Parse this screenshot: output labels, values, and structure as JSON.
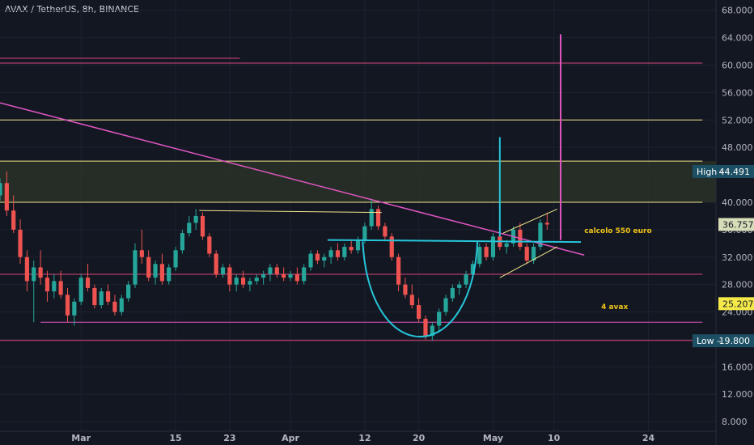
{
  "header": {
    "symbol_title": "AVAX / TetherUS, 8h, BINANCE"
  },
  "colors": {
    "background": "#131722",
    "up": "#26a69a",
    "down": "#ef5350",
    "trendline": "#e056c1",
    "resistance": "#f0e68c",
    "neckline": "#26c6da",
    "support_red": "#d9467a",
    "zone_fill": "#2c3328",
    "high_tag": "#1c4f63",
    "low_tag": "#1c4f63",
    "price_tag": "#d6ddb8",
    "avax_tag": "#f5e94a"
  },
  "chart_data": {
    "type": "candlestick",
    "title": "AVAX / TetherUS, 8h, BINANCE",
    "y_ticks": [
      "68.000",
      "64.000",
      "60.000",
      "56.000",
      "52.000",
      "48.000",
      "44.000",
      "40.000",
      "36.000",
      "32.000",
      "28.000",
      "24.000",
      "20.000",
      "16.000",
      "12.000",
      "8.000"
    ],
    "y_tick_values": [
      68,
      64,
      60,
      56,
      52,
      48,
      44,
      40,
      36,
      32,
      28,
      24,
      20,
      16,
      12,
      8
    ],
    "ylim": [
      6.6,
      69.5
    ],
    "x_ticks": [
      "Mar",
      "15",
      "23",
      "Apr",
      "12",
      "20",
      "May",
      "10",
      "24"
    ],
    "x_tick_days": [
      0,
      14,
      22,
      31,
      42,
      50,
      61,
      70,
      84
    ],
    "x_domain_days": [
      -12,
      94
    ],
    "price_tags": [
      {
        "label": "High",
        "value": "44.491",
        "price": 44.491,
        "style": "high"
      },
      {
        "label": "",
        "value": "36.757",
        "price": 36.757,
        "style": "current"
      },
      {
        "label": "",
        "value": "25.207",
        "price": 25.207,
        "style": "avax"
      },
      {
        "label": "Low",
        "value": "19.800",
        "price": 19.8,
        "style": "low"
      }
    ],
    "annotations": [
      {
        "text": "calcolo 550 euro",
        "day": 74.5,
        "price": 35.5
      },
      {
        "text": "4 avax",
        "day": 77,
        "price": 24.4
      }
    ],
    "horizontal_levels": [
      {
        "price": 60.3,
        "color": "support_red",
        "from_day": -12,
        "to_day": 92
      },
      {
        "price": 61.0,
        "color": "support_red",
        "from_day": -12,
        "to_day": 23.5
      },
      {
        "price": 52.0,
        "color": "resistance",
        "from_day": -12,
        "to_day": 92
      },
      {
        "price": 46.0,
        "color": "resistance",
        "from_day": -12,
        "to_day": 92
      },
      {
        "price": 40.0,
        "color": "resistance",
        "from_day": -12,
        "to_day": 92
      },
      {
        "price": 29.5,
        "color": "support_red",
        "from_day": -12,
        "to_day": 92
      },
      {
        "price": 22.5,
        "color": "trendline",
        "from_day": -6,
        "to_day": 92
      },
      {
        "price": 19.85,
        "color": "support_red",
        "from_day": -12,
        "to_day": 92
      }
    ],
    "resistance_zone": [
      40.0,
      46.0
    ],
    "trendline": {
      "from": [
        -12,
        54.5
      ],
      "to": [
        74.5,
        32.3
      ]
    },
    "neckline": {
      "from": [
        36.5,
        34.5
      ],
      "to": [
        74,
        34.2
      ]
    },
    "short_resistance": {
      "from": [
        17.5,
        38.8
      ],
      "to": [
        44.5,
        38.5
      ]
    },
    "flag_upper": {
      "from": [
        62.5,
        35.5
      ],
      "to": [
        70.5,
        39.0
      ]
    },
    "flag_lower": {
      "from": [
        62,
        29.0
      ],
      "to": [
        70.5,
        33.5
      ]
    },
    "target_line_cyan": {
      "day": 62,
      "from": 35.0,
      "to": 49.5
    },
    "target_line_pink": {
      "day": 71,
      "from": 34.5,
      "to": 64.5
    },
    "cup_arc": {
      "center_day": 50.2,
      "bottom": 19.3,
      "half_width_days": 8.5,
      "top": 34.3
    },
    "candles": [
      [
        -12,
        41.0,
        43.5,
        40.2,
        42.8
      ],
      [
        -11,
        42.8,
        44.5,
        38.0,
        38.8
      ],
      [
        -10,
        38.8,
        41.0,
        35.5,
        36.0
      ],
      [
        -9,
        36.0,
        37.5,
        31.0,
        32.0
      ],
      [
        -8,
        32.0,
        33.0,
        27.0,
        28.5
      ],
      [
        -7,
        28.5,
        31.5,
        22.5,
        30.5
      ],
      [
        -6,
        30.5,
        33.0,
        28.0,
        29.0
      ],
      [
        -5,
        29.0,
        30.0,
        25.5,
        27.0
      ],
      [
        -4,
        27.0,
        29.5,
        26.0,
        28.5
      ],
      [
        -3,
        28.5,
        30.0,
        26.0,
        26.5
      ],
      [
        -2,
        26.5,
        27.5,
        22.5,
        23.5
      ],
      [
        -1,
        23.5,
        26.0,
        22.0,
        25.5
      ],
      [
        0,
        25.5,
        29.5,
        25.0,
        29.0
      ],
      [
        1,
        29.0,
        31.0,
        27.0,
        27.5
      ],
      [
        2,
        27.5,
        28.0,
        24.5,
        25.0
      ],
      [
        3,
        25.0,
        27.5,
        24.5,
        27.0
      ],
      [
        4,
        27.0,
        28.0,
        25.0,
        25.5
      ],
      [
        5,
        25.5,
        26.5,
        23.5,
        24.0
      ],
      [
        6,
        24.0,
        26.5,
        23.5,
        26.0
      ],
      [
        7,
        26.0,
        28.5,
        25.5,
        28.0
      ],
      [
        8,
        28.0,
        34.0,
        27.5,
        33.0
      ],
      [
        9,
        33.0,
        36.0,
        31.0,
        32.0
      ],
      [
        10,
        32.0,
        33.0,
        28.5,
        29.0
      ],
      [
        11,
        29.0,
        31.5,
        28.0,
        31.0
      ],
      [
        12,
        31.0,
        32.5,
        28.0,
        28.5
      ],
      [
        13,
        28.5,
        31.0,
        28.0,
        30.5
      ],
      [
        14,
        30.5,
        33.5,
        30.0,
        33.0
      ],
      [
        15,
        33.0,
        36.0,
        32.5,
        35.5
      ],
      [
        16,
        35.5,
        38.0,
        35.0,
        37.0
      ],
      [
        17,
        37.0,
        39.0,
        36.0,
        38.0
      ],
      [
        18,
        38.0,
        38.5,
        34.5,
        35.0
      ],
      [
        19,
        35.0,
        35.5,
        32.0,
        32.5
      ],
      [
        20,
        32.5,
        33.0,
        29.0,
        29.5
      ],
      [
        21,
        29.5,
        31.0,
        29.0,
        30.5
      ],
      [
        22,
        30.5,
        31.0,
        27.0,
        28.0
      ],
      [
        23,
        28.0,
        29.5,
        27.0,
        29.0
      ],
      [
        24,
        29.0,
        30.0,
        27.5,
        28.0
      ],
      [
        25,
        28.0,
        29.0,
        27.0,
        28.5
      ],
      [
        26,
        28.5,
        29.5,
        28.0,
        29.0
      ],
      [
        27,
        29.0,
        30.0,
        28.0,
        29.5
      ],
      [
        28,
        29.5,
        31.0,
        28.5,
        30.5
      ],
      [
        29,
        30.5,
        31.0,
        29.0,
        29.5
      ],
      [
        30,
        29.5,
        30.5,
        28.5,
        29.0
      ],
      [
        31,
        29.0,
        30.0,
        28.5,
        29.5
      ],
      [
        32,
        29.5,
        30.5,
        28.0,
        28.5
      ],
      [
        33,
        28.5,
        31.0,
        28.0,
        30.5
      ],
      [
        34,
        30.5,
        33.0,
        30.0,
        32.5
      ],
      [
        35,
        32.5,
        33.0,
        31.0,
        31.5
      ],
      [
        36,
        31.5,
        32.5,
        30.5,
        32.0
      ],
      [
        37,
        32.0,
        33.5,
        31.0,
        33.0
      ],
      [
        38,
        33.0,
        34.0,
        31.5,
        32.0
      ],
      [
        39,
        32.0,
        34.0,
        31.5,
        33.5
      ],
      [
        40,
        33.5,
        34.5,
        32.5,
        33.0
      ],
      [
        41,
        33.0,
        35.0,
        32.5,
        34.5
      ],
      [
        42,
        34.5,
        37.0,
        34.0,
        36.5
      ],
      [
        43,
        36.5,
        40.5,
        36.0,
        39.0
      ],
      [
        44,
        39.0,
        39.5,
        36.0,
        36.5
      ],
      [
        45,
        36.5,
        37.0,
        34.5,
        35.0
      ],
      [
        46,
        35.0,
        35.5,
        31.5,
        32.0
      ],
      [
        47,
        32.0,
        32.5,
        27.0,
        28.0
      ],
      [
        48,
        28.0,
        29.0,
        26.0,
        26.5
      ],
      [
        49,
        26.5,
        28.0,
        24.5,
        25.0
      ],
      [
        50,
        25.0,
        26.0,
        22.5,
        23.0
      ],
      [
        51,
        23.0,
        23.5,
        20.0,
        20.5
      ],
      [
        52,
        20.5,
        22.5,
        19.8,
        22.0
      ],
      [
        53,
        22.0,
        24.5,
        21.0,
        24.0
      ],
      [
        54,
        24.0,
        26.5,
        23.5,
        26.0
      ],
      [
        55,
        26.0,
        28.0,
        25.5,
        27.5
      ],
      [
        56,
        27.5,
        28.5,
        26.5,
        28.0
      ],
      [
        57,
        28.0,
        30.0,
        27.5,
        29.5
      ],
      [
        58,
        29.5,
        31.5,
        29.0,
        31.0
      ],
      [
        59,
        31.0,
        34.0,
        30.5,
        33.5
      ],
      [
        60,
        33.5,
        34.0,
        31.5,
        32.0
      ],
      [
        61,
        32.0,
        35.5,
        31.5,
        35.0
      ],
      [
        62,
        35.0,
        35.5,
        33.0,
        33.5
      ],
      [
        63,
        33.5,
        34.5,
        32.5,
        34.0
      ],
      [
        64,
        34.0,
        36.5,
        33.5,
        36.0
      ],
      [
        65,
        36.0,
        37.0,
        33.0,
        33.5
      ],
      [
        66,
        33.5,
        34.0,
        31.0,
        31.5
      ],
      [
        67,
        31.5,
        34.0,
        31.0,
        33.5
      ],
      [
        68,
        33.5,
        37.5,
        33.0,
        37.0
      ],
      [
        69,
        37.0,
        38.5,
        36.0,
        36.757
      ]
    ]
  }
}
